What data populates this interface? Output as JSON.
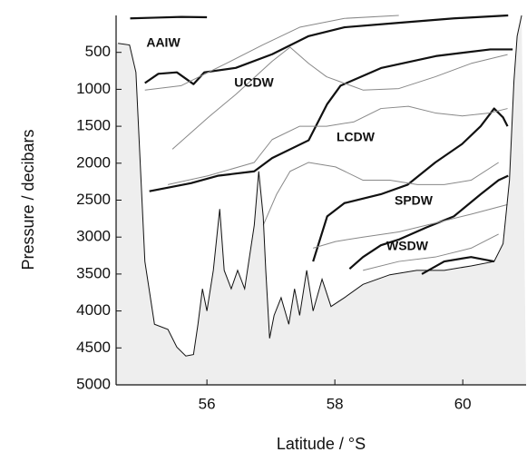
{
  "chart_data": {
    "type": "line",
    "x_label": "Latitude / °S",
    "y_label": "Pressure / decibars",
    "xlim": [
      54.58,
      60.99
    ],
    "xticks": [
      56,
      58,
      60
    ],
    "ylim": [
      5000,
      0
    ],
    "yticks": [
      500,
      1000,
      1500,
      2000,
      2500,
      3000,
      3500,
      4000,
      4500,
      5000
    ],
    "annotations": [
      "AAIW",
      "UCDW",
      "LCDW",
      "SPDW",
      "WSDW"
    ],
    "bathymetry": {
      "color": "#111111",
      "fill": "#eeeeee",
      "x": [
        54.61,
        54.79,
        54.89,
        55.03,
        55.18,
        55.39,
        55.53,
        55.67,
        55.79,
        55.86,
        55.93,
        56.0,
        56.1,
        56.2,
        56.27,
        56.38,
        56.48,
        56.59,
        56.74,
        56.81,
        56.88,
        56.92,
        56.98,
        57.05,
        57.16,
        57.28,
        57.37,
        57.45,
        57.56,
        57.66,
        57.8,
        57.94,
        58.15,
        58.44,
        58.86,
        59.28,
        59.71,
        60.13,
        60.49,
        60.63,
        60.73,
        60.8,
        60.85,
        60.92
      ],
      "values": [
        378,
        400,
        770,
        3330,
        4180,
        4250,
        4490,
        4610,
        4590,
        4180,
        3700,
        4000,
        3450,
        2620,
        3450,
        3700,
        3450,
        3700,
        2840,
        2110,
        2720,
        3450,
        4370,
        4060,
        3820,
        4180,
        3700,
        4060,
        3450,
        4000,
        3570,
        3940,
        3820,
        3640,
        3510,
        3450,
        3450,
        3390,
        3330,
        3090,
        2230,
        890,
        280,
        0
      ]
    },
    "series": [
      {
        "color": "#111111",
        "width": 2.2,
        "x": [
          54.8,
          55.2,
          55.6,
          56.0
        ],
        "values": [
          40,
          30,
          20,
          25
        ]
      },
      {
        "color": "#111111",
        "width": 2.2,
        "x": [
          55.03,
          55.24,
          55.53,
          55.79,
          55.96,
          56.45,
          57.02,
          57.59,
          58.15,
          59.0,
          59.86,
          60.71
        ],
        "values": [
          915,
          790,
          770,
          930,
          770,
          710,
          525,
          280,
          160,
          100,
          40,
          0
        ]
      },
      {
        "color": "#111111",
        "width": 2.2,
        "x": [
          55.1,
          55.75,
          56.17,
          56.74,
          57.02,
          57.59,
          57.88,
          58.09,
          58.73,
          59.58,
          60.43,
          60.78
        ],
        "values": [
          2380,
          2270,
          2170,
          2110,
          1930,
          1690,
          1200,
          950,
          710,
          550,
          460,
          460
        ]
      },
      {
        "color": "#111111",
        "width": 2.2,
        "x": [
          57.66,
          57.88,
          58.15,
          58.72,
          59.14,
          59.57,
          59.99,
          60.28,
          60.49,
          60.63,
          60.7
        ],
        "values": [
          3330,
          2720,
          2540,
          2420,
          2290,
          1990,
          1740,
          1500,
          1260,
          1380,
          1500
        ]
      },
      {
        "color": "#111111",
        "width": 2.2,
        "x": [
          58.23,
          58.44,
          58.72,
          59.01,
          59.43,
          59.86,
          60.28,
          60.56,
          60.71
        ],
        "values": [
          3430,
          3270,
          3110,
          3030,
          2870,
          2720,
          2420,
          2230,
          2170
        ]
      },
      {
        "color": "#111111",
        "width": 2.2,
        "x": [
          59.36,
          59.71,
          60.13,
          60.49
        ],
        "values": [
          3500,
          3330,
          3270,
          3330
        ]
      },
      {
        "color": "#888888",
        "width": 1,
        "x": [
          55.03,
          55.6,
          56.3,
          56.87,
          57.45,
          58.15,
          59.0
        ],
        "values": [
          1010,
          950,
          650,
          400,
          160,
          40,
          0
        ]
      },
      {
        "color": "#888888",
        "width": 1,
        "x": [
          55.46,
          56.02,
          56.45,
          57.02,
          57.3,
          57.59,
          57.87,
          58.44,
          59.0,
          59.57,
          60.13,
          60.7
        ],
        "values": [
          1810,
          1380,
          1070,
          620,
          430,
          650,
          830,
          1010,
          990,
          830,
          650,
          530
        ]
      },
      {
        "color": "#888888",
        "width": 1,
        "x": [
          55.39,
          56.02,
          56.74,
          57.02,
          57.45,
          57.87,
          58.3,
          58.72,
          59.15,
          59.57,
          59.99,
          60.42,
          60.7
        ],
        "values": [
          2290,
          2170,
          1990,
          1680,
          1500,
          1500,
          1440,
          1260,
          1230,
          1320,
          1360,
          1320,
          1260
        ]
      },
      {
        "color": "#888888",
        "width": 1,
        "x": [
          56.88,
          57.09,
          57.3,
          57.59,
          58.01,
          58.44,
          58.86,
          59.29,
          59.71,
          60.13,
          60.56
        ],
        "values": [
          2840,
          2420,
          2110,
          1990,
          2050,
          2230,
          2230,
          2290,
          2290,
          2230,
          1990
        ]
      },
      {
        "color": "#888888",
        "width": 1,
        "x": [
          57.66,
          58.01,
          58.44,
          59.0,
          59.57,
          60.13,
          60.7
        ],
        "values": [
          3150,
          3060,
          3000,
          2930,
          2810,
          2690,
          2560
        ]
      },
      {
        "color": "#888888",
        "width": 1,
        "x": [
          58.44,
          59.0,
          59.57,
          60.13,
          60.56
        ],
        "values": [
          3450,
          3330,
          3270,
          3150,
          2960
        ]
      }
    ]
  }
}
